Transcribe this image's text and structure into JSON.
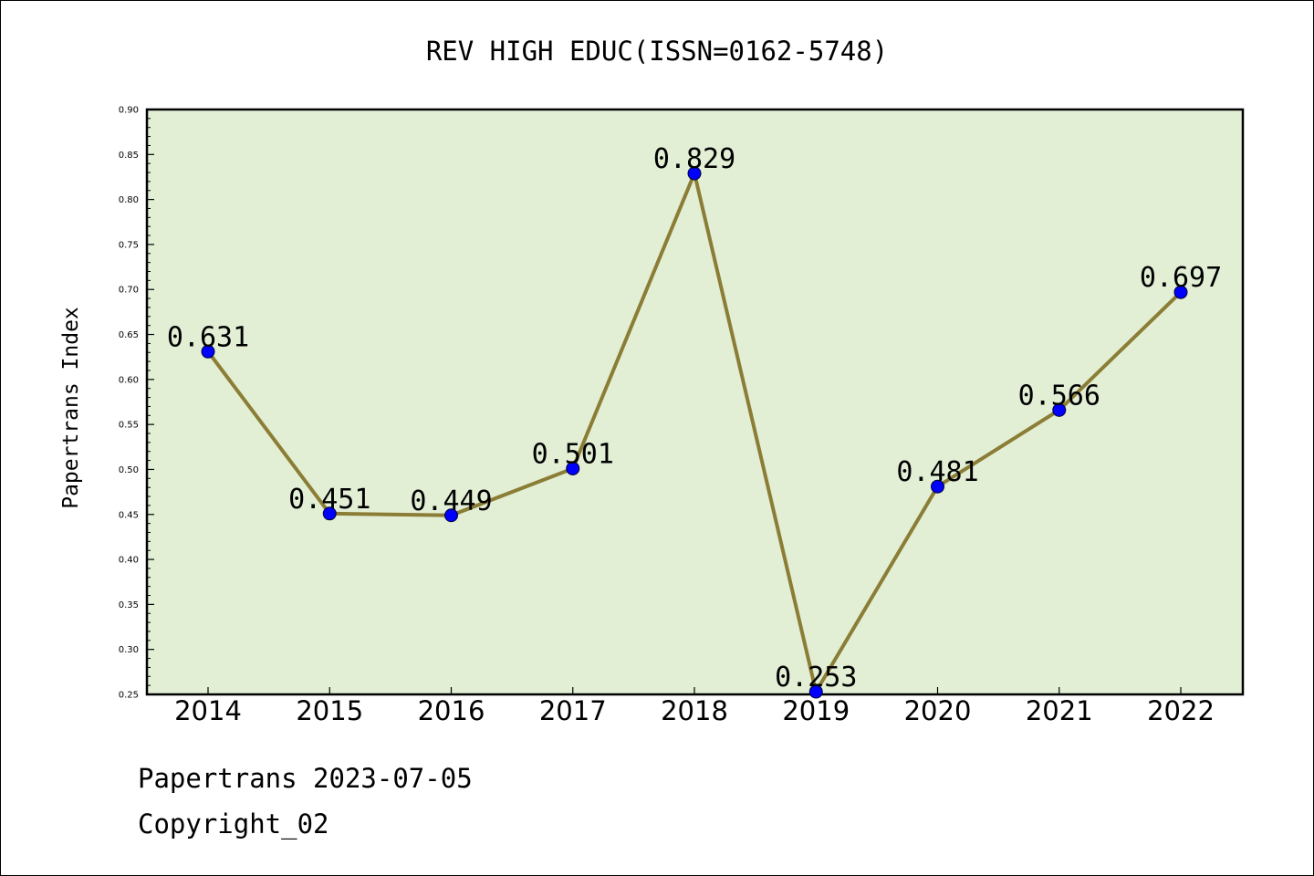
{
  "chart_data": {
    "type": "line",
    "title": "REV HIGH EDUC(ISSN=0162-5748)",
    "xlabel": "",
    "ylabel": "Papertrans Index",
    "categories": [
      "2014",
      "2015",
      "2016",
      "2017",
      "2018",
      "2019",
      "2020",
      "2021",
      "2022"
    ],
    "series": [
      {
        "values": [
          0.631,
          0.451,
          0.449,
          0.501,
          0.829,
          0.253,
          0.481,
          0.566,
          0.697
        ]
      }
    ],
    "data_labels": [
      "0.631",
      "0.451",
      "0.449",
      "0.501",
      "0.829",
      "0.253",
      "0.481",
      "0.566",
      "0.697"
    ],
    "ylim": [
      0.25,
      0.9
    ],
    "yticks": [
      "0.25",
      "0.30",
      "0.35",
      "0.40",
      "0.45",
      "0.50",
      "0.55",
      "0.60",
      "0.65",
      "0.70",
      "0.75",
      "0.80",
      "0.85",
      "0.90"
    ],
    "grid": false,
    "colors": {
      "plot_background": "#e2efd5",
      "line": "#8b7d35",
      "marker": "#0000ff"
    }
  },
  "footer": {
    "line1": "Papertrans 2023-07-05",
    "line2": "Copyright_02"
  }
}
